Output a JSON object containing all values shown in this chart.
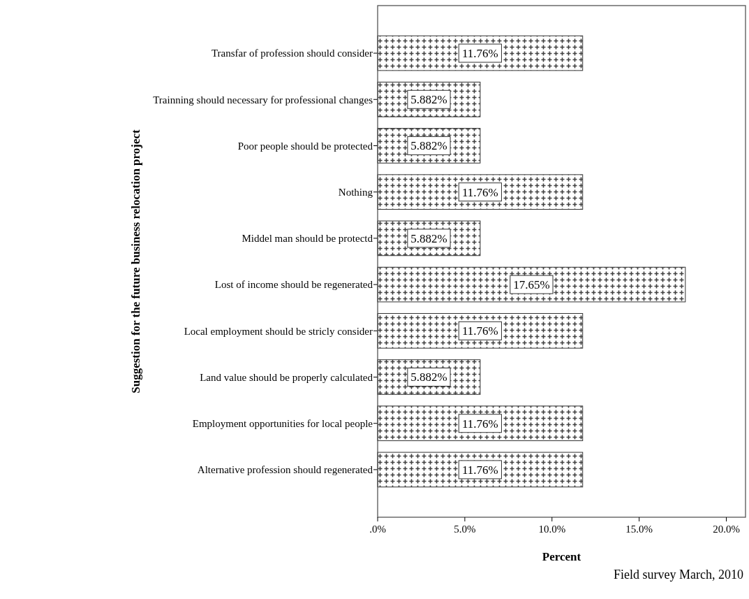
{
  "chart_data": {
    "type": "bar",
    "orientation": "horizontal",
    "xlabel": "Percent",
    "ylabel": "Suggestion for the future business relocation project",
    "categories": [
      "Transfar of profession should consider",
      "Trainning should necessary for professional changes",
      "Poor people should be protected",
      "Nothing",
      "Middel man should be protectd",
      "Lost of income should be regenerated",
      "Local employment should be stricly consider",
      "Land value should be properly calculated",
      "Employment opportunities for local people",
      "Alternative profession should regenerated"
    ],
    "values": [
      11.76,
      5.882,
      5.882,
      11.76,
      5.882,
      17.65,
      11.76,
      5.882,
      11.76,
      11.76
    ],
    "value_labels": [
      "11.76%",
      "5.882%",
      "5.882%",
      "11.76%",
      "5.882%",
      "17.65%",
      "11.76%",
      "5.882%",
      "11.76%",
      "11.76%"
    ],
    "color": "#404040",
    "xlim": [
      0,
      21.1
    ],
    "xticks": [
      {
        "value": 0,
        "label": ".0%"
      },
      {
        "value": 5,
        "label": "5.0%"
      },
      {
        "value": 10,
        "label": "10.0%"
      },
      {
        "value": 15,
        "label": "15.0%"
      },
      {
        "value": 20,
        "label": "20.0%"
      }
    ],
    "grid": false,
    "annotations": [
      "Field survey March, 2010"
    ]
  }
}
